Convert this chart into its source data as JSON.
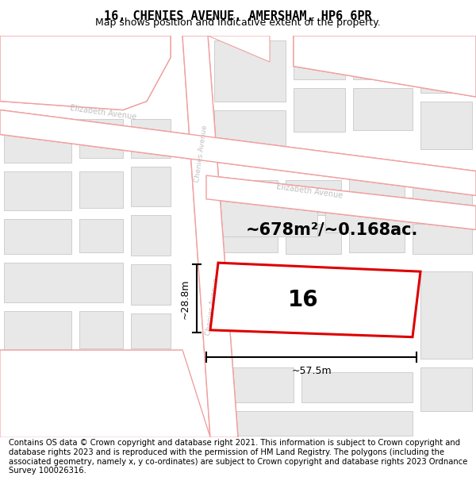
{
  "title": "16, CHENIES AVENUE, AMERSHAM, HP6 6PR",
  "subtitle": "Map shows position and indicative extent of the property.",
  "footer": "Contains OS data © Crown copyright and database right 2021. This information is subject to Crown copyright and database rights 2023 and is reproduced with the permission of HM Land Registry. The polygons (including the associated geometry, namely x, y co-ordinates) are subject to Crown copyright and database rights 2023 Ordnance Survey 100026316.",
  "area_label": "~678m²/~0.168ac.",
  "property_number": "16",
  "dim_width": "~57.5m",
  "dim_height": "~28.8m",
  "bg_color": "#f8f8f8",
  "road_color": "#f0a0a0",
  "road_fill": "#ffffff",
  "building_fill": "#e8e8e8",
  "building_edge": "#c8c8c8",
  "property_edge": "#dd0000",
  "title_fontsize": 11,
  "subtitle_fontsize": 9,
  "footer_fontsize": 7.2,
  "area_fontsize": 15,
  "property_num_fontsize": 20,
  "street_label_color": "#c0c0c0",
  "dim_color": "#000000"
}
